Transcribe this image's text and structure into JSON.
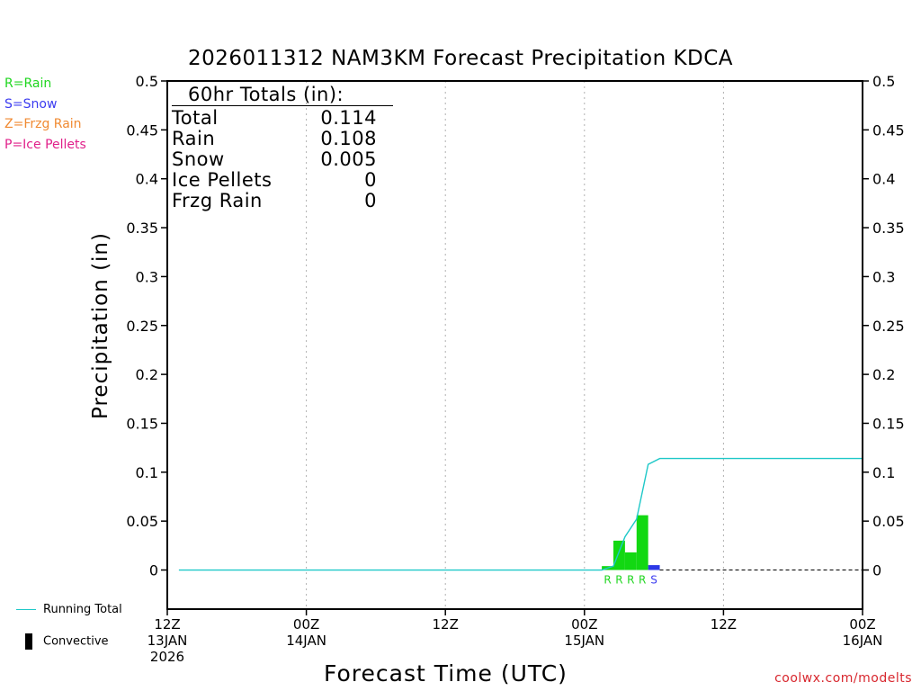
{
  "title": "2026011312 NAM3KM Forecast Precipitation KDCA",
  "xlabel": "Forecast Time (UTC)",
  "ylabel": "Precipitation (in)",
  "credit": "coolwx.com/modelts",
  "legend": [
    {
      "label": "R=Rain",
      "color": "#1fd61f"
    },
    {
      "label": "S=Snow",
      "color": "#3b3bf0"
    },
    {
      "label": "Z=Frzg Rain",
      "color": "#f08a32"
    },
    {
      "label": "P=Ice Pellets",
      "color": "#e0208a"
    }
  ],
  "bottom_legend": {
    "running_total": "Running Total",
    "convective": "Convective",
    "running_total_color": "#1ec8c8"
  },
  "totals": {
    "header": "60hr Totals (in):",
    "rows": [
      {
        "label": "Total",
        "value": "0.114"
      },
      {
        "label": "Rain",
        "value": "0.108"
      },
      {
        "label": "Snow",
        "value": "0.005"
      },
      {
        "label": "Ice Pellets",
        "value": "0"
      },
      {
        "label": "Frzg Rain",
        "value": "0"
      }
    ]
  },
  "chart_data": {
    "type": "bar",
    "title": "2026011312 NAM3KM Forecast Precipitation KDCA",
    "xlabel": "Forecast Time (UTC)",
    "ylabel": "Precipitation (in)",
    "xlim": [
      0,
      60
    ],
    "ylim": [
      -0.04,
      0.5
    ],
    "yticks": [
      0,
      0.05,
      0.1,
      0.15,
      0.2,
      0.25,
      0.3,
      0.35,
      0.4,
      0.45,
      0.5
    ],
    "ytick_labels": [
      "0",
      "0.05",
      "0.1",
      "0.15",
      "0.2",
      "0.25",
      "0.3",
      "0.35",
      "0.4",
      "0.45",
      "0.5"
    ],
    "xticks": [
      {
        "hour": 0,
        "lines": [
          "12Z",
          "13JAN",
          "2026"
        ]
      },
      {
        "hour": 12,
        "lines": [
          "00Z",
          "14JAN"
        ]
      },
      {
        "hour": 24,
        "lines": [
          "12Z"
        ]
      },
      {
        "hour": 36,
        "lines": [
          "00Z",
          "15JAN"
        ]
      },
      {
        "hour": 48,
        "lines": [
          "12Z"
        ]
      },
      {
        "hour": 60,
        "lines": [
          "00Z",
          "16JAN"
        ]
      }
    ],
    "bars": [
      {
        "hour": 38,
        "value": 0.004,
        "type": "R"
      },
      {
        "hour": 39,
        "value": 0.03,
        "type": "R"
      },
      {
        "hour": 40,
        "value": 0.018,
        "type": "R"
      },
      {
        "hour": 41,
        "value": 0.056,
        "type": "R"
      },
      {
        "hour": 42,
        "value": 0.005,
        "type": "S"
      }
    ],
    "running_total": {
      "x": [
        1,
        37.5,
        38.5,
        39.5,
        40.5,
        41.5,
        42.5,
        60
      ],
      "y": [
        0,
        0,
        0.004,
        0.034,
        0.052,
        0.108,
        0.114,
        0.114
      ]
    }
  }
}
